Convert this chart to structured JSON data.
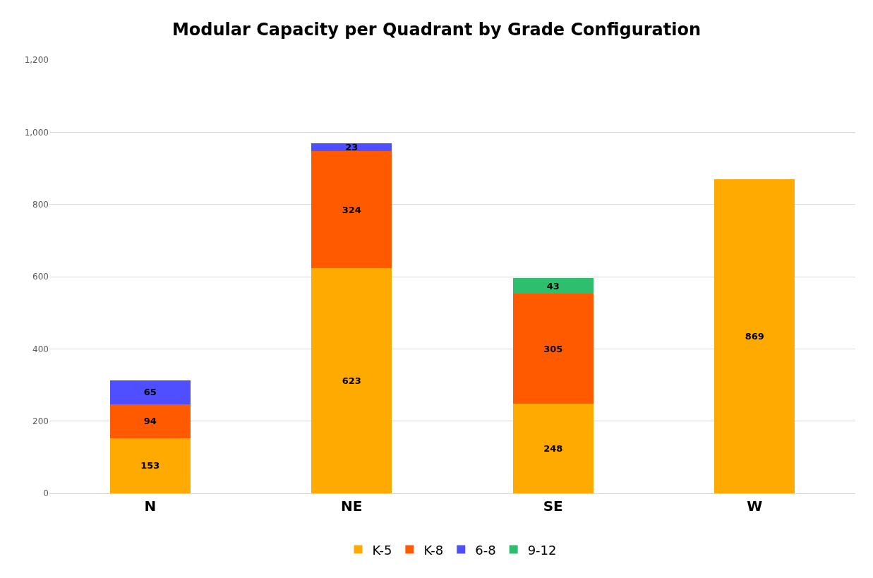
{
  "chart_data": {
    "type": "bar",
    "title": "Modular Capacity per Quadrant by Grade Configuration",
    "categories": [
      "N",
      "NE",
      "SE",
      "W"
    ],
    "series": [
      {
        "name": "K-5",
        "color": "#ffaa00",
        "values": [
          153,
          623,
          248,
          869
        ]
      },
      {
        "name": "K-8",
        "color": "#ff5a00",
        "values": [
          94,
          324,
          305,
          null
        ]
      },
      {
        "name": "6-8",
        "color": "#4f4fff",
        "values": [
          65,
          23,
          null,
          null
        ]
      },
      {
        "name": "9-12",
        "color": "#2dbe6e",
        "values": [
          null,
          null,
          43,
          null
        ]
      }
    ],
    "stacked": true,
    "data_labels": true,
    "ylim": [
      0,
      1200
    ],
    "yticks": [
      0,
      200,
      400,
      600,
      800,
      {
        "value": 1000,
        "label": "1,000"
      },
      {
        "value": 1200,
        "label": "1,200"
      }
    ],
    "grid": "y",
    "legend": "bottom"
  }
}
